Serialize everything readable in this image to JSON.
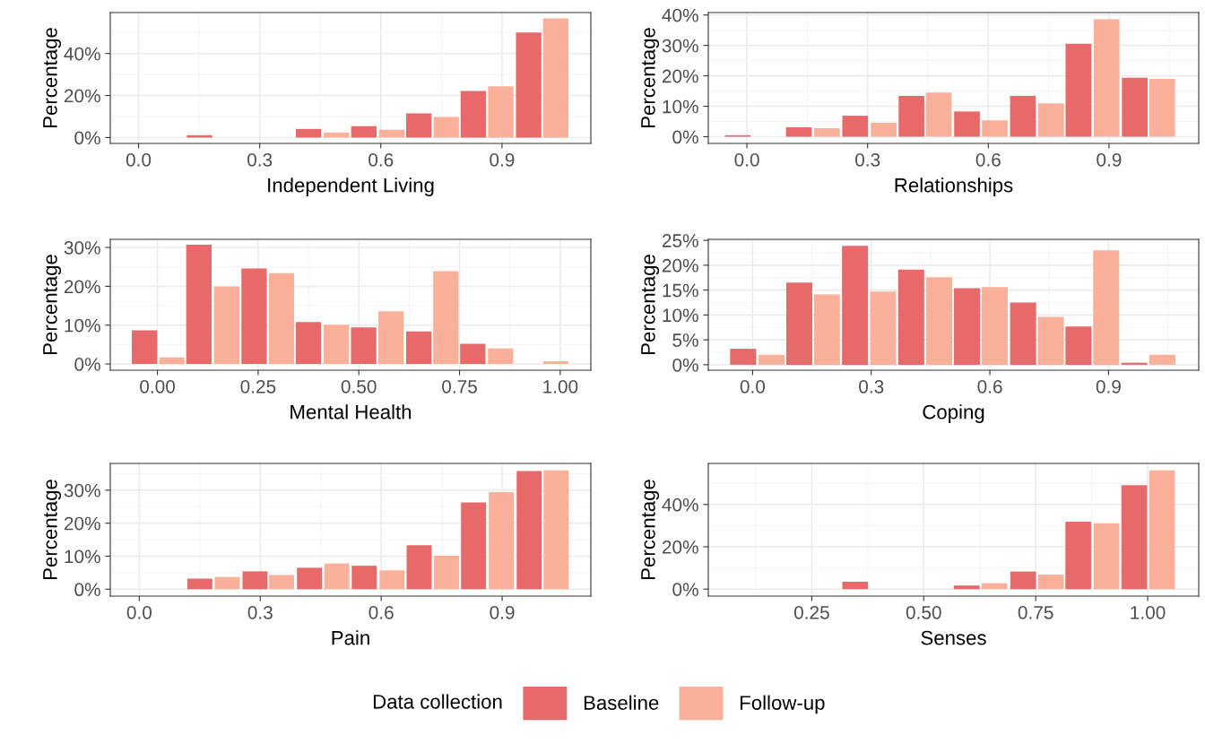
{
  "chart_data": [
    {
      "type": "bar",
      "xlabel": "Independent Living",
      "ylabel": "Percentage",
      "grid": true,
      "legend": "bottom",
      "legend_title": "Data collection",
      "xlim": [
        -0.07,
        1.12
      ],
      "ylim": [
        -2.8,
        59.5
      ],
      "xticks": [
        {
          "value": 0,
          "label": "0.0"
        },
        {
          "value": 0.3,
          "label": "0.3"
        },
        {
          "value": 0.6,
          "label": "0.6"
        },
        {
          "value": 0.9,
          "label": "0.9"
        }
      ],
      "yticks": [
        {
          "value": 0,
          "label": "0%"
        },
        {
          "value": 20,
          "label": "20%"
        },
        {
          "value": 40,
          "label": "40%"
        }
      ],
      "series": [
        {
          "name": "Baseline",
          "color": "#e8696a",
          "x": [
            0.151,
            0.421,
            0.558,
            0.694,
            0.829,
            0.966
          ],
          "values": [
            1.1,
            4.1,
            5.4,
            11.5,
            22.2,
            50
          ]
        },
        {
          "name": "Follow-up",
          "color": "#fbb09a",
          "x": [
            0.49,
            0.627,
            0.762,
            0.897,
            1.033
          ],
          "values": [
            2.4,
            3.7,
            9.8,
            24.4,
            56.7
          ]
        }
      ]
    },
    {
      "type": "bar",
      "xlabel": "Relationships",
      "ylabel": "Percentage",
      "grid": true,
      "xlim": [
        -0.096,
        1.123
      ],
      "ylim": [
        -2.2,
        40.8
      ],
      "xticks": [
        {
          "value": 0,
          "label": "0.0"
        },
        {
          "value": 0.3,
          "label": "0.3"
        },
        {
          "value": 0.6,
          "label": "0.6"
        },
        {
          "value": 0.9,
          "label": "0.9"
        }
      ],
      "yticks": [
        {
          "value": 0,
          "label": "0%"
        },
        {
          "value": 10,
          "label": "10%"
        },
        {
          "value": 20,
          "label": "20%"
        },
        {
          "value": 30,
          "label": "30%"
        },
        {
          "value": 40,
          "label": "40%"
        }
      ],
      "series": [
        {
          "color": "#e8696a",
          "x": [
            -0.023,
            0.129,
            0.269,
            0.409,
            0.547,
            0.686,
            0.824,
            0.964
          ],
          "values": [
            0.5,
            3.1,
            6.9,
            13.4,
            8.3,
            13.4,
            30.6,
            19.4
          ]
        },
        {
          "color": "#fbb09a",
          "x": [
            0.199,
            0.34,
            0.477,
            0.616,
            0.756,
            0.894,
            1.032
          ],
          "values": [
            2.8,
            4.6,
            14.5,
            5.4,
            11.0,
            38.6,
            19.0
          ]
        }
      ]
    },
    {
      "type": "bar",
      "xlabel": "Mental Health",
      "ylabel": "Percentage",
      "grid": true,
      "xlim": [
        -0.117,
        1.076
      ],
      "ylim": [
        -1.6,
        32.1
      ],
      "xticks": [
        {
          "value": 0,
          "label": "0.00"
        },
        {
          "value": 0.25,
          "label": "0.25"
        },
        {
          "value": 0.5,
          "label": "0.50"
        },
        {
          "value": 0.75,
          "label": "0.75"
        },
        {
          "value": 1,
          "label": "1.00"
        }
      ],
      "yticks": [
        {
          "value": 0,
          "label": "0%"
        },
        {
          "value": 10,
          "label": "10%"
        },
        {
          "value": 20,
          "label": "20%"
        },
        {
          "value": 30,
          "label": "30%"
        }
      ],
      "series": [
        {
          "color": "#e8696a",
          "x": [
            -0.032,
            0.103,
            0.24,
            0.375,
            0.512,
            0.649,
            0.783
          ],
          "values": [
            8.7,
            30.7,
            24.6,
            10.8,
            9.4,
            8.4,
            5.2
          ]
        },
        {
          "color": "#fbb09a",
          "x": [
            0.036,
            0.172,
            0.308,
            0.444,
            0.58,
            0.716,
            0.852,
            0.989
          ],
          "values": [
            1.7,
            19.9,
            23.4,
            10.1,
            13.6,
            23.9,
            4.0,
            0.7
          ]
        }
      ]
    },
    {
      "type": "bar",
      "xlabel": "Coping",
      "ylabel": "Percentage",
      "grid": true,
      "xlim": [
        -0.112,
        1.128
      ],
      "ylim": [
        -1.1,
        25.2
      ],
      "xticks": [
        {
          "value": 0,
          "label": "0.0"
        },
        {
          "value": 0.3,
          "label": "0.3"
        },
        {
          "value": 0.6,
          "label": "0.6"
        },
        {
          "value": 0.9,
          "label": "0.9"
        }
      ],
      "yticks": [
        {
          "value": 0,
          "label": "0%"
        },
        {
          "value": 5,
          "label": "5%"
        },
        {
          "value": 10,
          "label": "10%"
        },
        {
          "value": 15,
          "label": "15%"
        },
        {
          "value": 20,
          "label": "20%"
        },
        {
          "value": 25,
          "label": "25%"
        }
      ],
      "series": [
        {
          "color": "#e8696a",
          "x": [
            -0.024,
            0.118,
            0.259,
            0.401,
            0.542,
            0.684,
            0.824,
            0.965
          ],
          "values": [
            3.2,
            16.5,
            23.9,
            19.1,
            15.4,
            12.5,
            7.7,
            0.4
          ]
        },
        {
          "color": "#fbb09a",
          "x": [
            0.048,
            0.188,
            0.33,
            0.472,
            0.612,
            0.754,
            0.894,
            1.036
          ],
          "values": [
            2.0,
            14.1,
            14.7,
            17.6,
            15.6,
            9.6,
            23.0,
            2.0
          ]
        }
      ]
    },
    {
      "type": "bar",
      "xlabel": "Pain",
      "ylabel": "Percentage",
      "grid": true,
      "xlim": [
        -0.072,
        1.12
      ],
      "ylim": [
        -2.1,
        38.1
      ],
      "xticks": [
        {
          "value": 0,
          "label": "0.0"
        },
        {
          "value": 0.3,
          "label": "0.3"
        },
        {
          "value": 0.6,
          "label": "0.6"
        },
        {
          "value": 0.9,
          "label": "0.9"
        }
      ],
      "yticks": [
        {
          "value": 0,
          "label": "0%"
        },
        {
          "value": 10,
          "label": "10%"
        },
        {
          "value": 20,
          "label": "20%"
        },
        {
          "value": 30,
          "label": "30%"
        }
      ],
      "series": [
        {
          "color": "#e8696a",
          "x": [
            0.15,
            0.287,
            0.422,
            0.558,
            0.694,
            0.829,
            0.967
          ],
          "values": [
            3.2,
            5.4,
            6.5,
            7.1,
            13.3,
            26.3,
            35.8
          ]
        },
        {
          "color": "#fbb09a",
          "x": [
            0.218,
            0.353,
            0.49,
            0.627,
            0.762,
            0.898,
            1.034
          ],
          "values": [
            3.7,
            4.3,
            7.8,
            5.7,
            10.1,
            29.4,
            36.0
          ]
        }
      ]
    },
    {
      "type": "bar",
      "xlabel": "Senses",
      "ylabel": "Percentage",
      "grid": true,
      "xlim": [
        0.019,
        1.114
      ],
      "ylim": [
        -3.3,
        59.4
      ],
      "xticks": [
        {
          "value": 0.25,
          "label": "0.25"
        },
        {
          "value": 0.5,
          "label": "0.50"
        },
        {
          "value": 0.75,
          "label": "0.75"
        },
        {
          "value": 1,
          "label": "1.00"
        }
      ],
      "yticks": [
        {
          "value": 0,
          "label": "0%"
        },
        {
          "value": 20,
          "label": "20%"
        },
        {
          "value": 40,
          "label": "40%"
        }
      ],
      "series": [
        {
          "color": "#e8696a",
          "x": [
            0.347,
            0.596,
            0.722,
            0.845,
            0.97
          ],
          "values": [
            3.5,
            1.7,
            8.3,
            31.9,
            49.1
          ]
        },
        {
          "color": "#fbb09a",
          "x": [
            0.658,
            0.784,
            0.908,
            1.032
          ],
          "values": [
            2.8,
            6.9,
            31.1,
            56.1
          ]
        }
      ]
    }
  ]
}
